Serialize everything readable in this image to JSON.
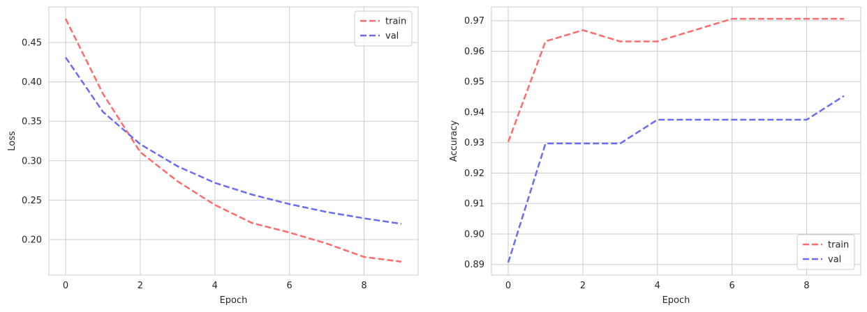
{
  "chart_data": [
    {
      "type": "line",
      "title": "",
      "xlabel": "Epoch",
      "ylabel": "Loss",
      "xlim": [
        -0.45,
        9.45
      ],
      "ylim": [
        0.155,
        0.495
      ],
      "xticks": [
        0,
        2,
        4,
        6,
        8
      ],
      "xtick_labels": [
        "0",
        "2",
        "4",
        "6",
        "8"
      ],
      "yticks": [
        0.2,
        0.25,
        0.3,
        0.35,
        0.4,
        0.45
      ],
      "ytick_labels": [
        "0.20",
        "0.25",
        "0.30",
        "0.35",
        "0.40",
        "0.45"
      ],
      "grid": true,
      "legend_position": "top-right",
      "x": [
        0,
        1,
        2,
        3,
        4,
        5,
        6,
        7,
        8,
        9
      ],
      "series": [
        {
          "name": "train",
          "color": "#ff6b6b",
          "values": [
            0.48,
            0.385,
            0.311,
            0.274,
            0.244,
            0.221,
            0.209,
            0.195,
            0.178,
            0.172
          ]
        },
        {
          "name": "val",
          "color": "#6b6bf0",
          "values": [
            0.431,
            0.362,
            0.321,
            0.293,
            0.272,
            0.257,
            0.245,
            0.235,
            0.227,
            0.22
          ]
        }
      ]
    },
    {
      "type": "line",
      "title": "",
      "xlabel": "Epoch",
      "ylabel": "Accuracy",
      "xlim": [
        -0.45,
        9.45
      ],
      "ylim": [
        0.8865,
        0.9745
      ],
      "xticks": [
        0,
        2,
        4,
        6,
        8
      ],
      "xtick_labels": [
        "0",
        "2",
        "4",
        "6",
        "8"
      ],
      "yticks": [
        0.89,
        0.9,
        0.91,
        0.92,
        0.93,
        0.94,
        0.95,
        0.96,
        0.97
      ],
      "ytick_labels": [
        "0.89",
        "0.90",
        "0.91",
        "0.92",
        "0.93",
        "0.94",
        "0.95",
        "0.96",
        "0.97"
      ],
      "grid": true,
      "legend_position": "bottom-right",
      "x": [
        0,
        1,
        2,
        3,
        4,
        5,
        6,
        7,
        8,
        9
      ],
      "series": [
        {
          "name": "train",
          "color": "#ff6b6b",
          "values": [
            0.9302,
            0.9632,
            0.9669,
            0.9632,
            0.9632,
            0.9669,
            0.9706,
            0.9706,
            0.9706,
            0.9706
          ]
        },
        {
          "name": "val",
          "color": "#6b6bf0",
          "values": [
            0.8906,
            0.9297,
            0.9297,
            0.9297,
            0.9375,
            0.9375,
            0.9375,
            0.9375,
            0.9375,
            0.9453
          ]
        }
      ]
    }
  ]
}
